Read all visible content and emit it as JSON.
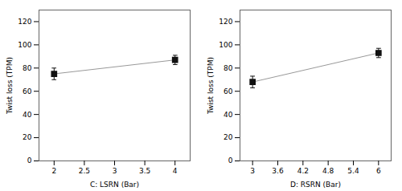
{
  "chart_data": [
    {
      "type": "line",
      "x": [
        2,
        4
      ],
      "values": [
        75,
        87
      ],
      "yerr": [
        5,
        4
      ],
      "xlabel": "C: LSRN (Bar)",
      "ylabel": "Twist loss (TPM)",
      "xlim": [
        1.75,
        4.25
      ],
      "ylim": [
        0,
        130
      ],
      "xticks": [
        2,
        2.5,
        3,
        3.5,
        4
      ],
      "yticks": [
        0,
        20,
        40,
        60,
        80,
        100,
        120
      ],
      "color": "#999999",
      "colors": [
        "#111111",
        "#111111"
      ],
      "marker": "square"
    },
    {
      "type": "line",
      "x": [
        3,
        6
      ],
      "values": [
        68,
        93
      ],
      "yerr": [
        5,
        4
      ],
      "xlabel": "D: RSRN (Bar)",
      "ylabel": "Twist loss (TPM)",
      "xlim": [
        2.7,
        6.3
      ],
      "ylim": [
        0,
        130
      ],
      "xticks": [
        3,
        3.6,
        4.2,
        4.8,
        5.4,
        6
      ],
      "yticks": [
        0,
        20,
        40,
        60,
        80,
        100,
        120
      ],
      "color": "#999999",
      "colors": [
        "#111111",
        "#111111"
      ],
      "marker": "square"
    }
  ]
}
